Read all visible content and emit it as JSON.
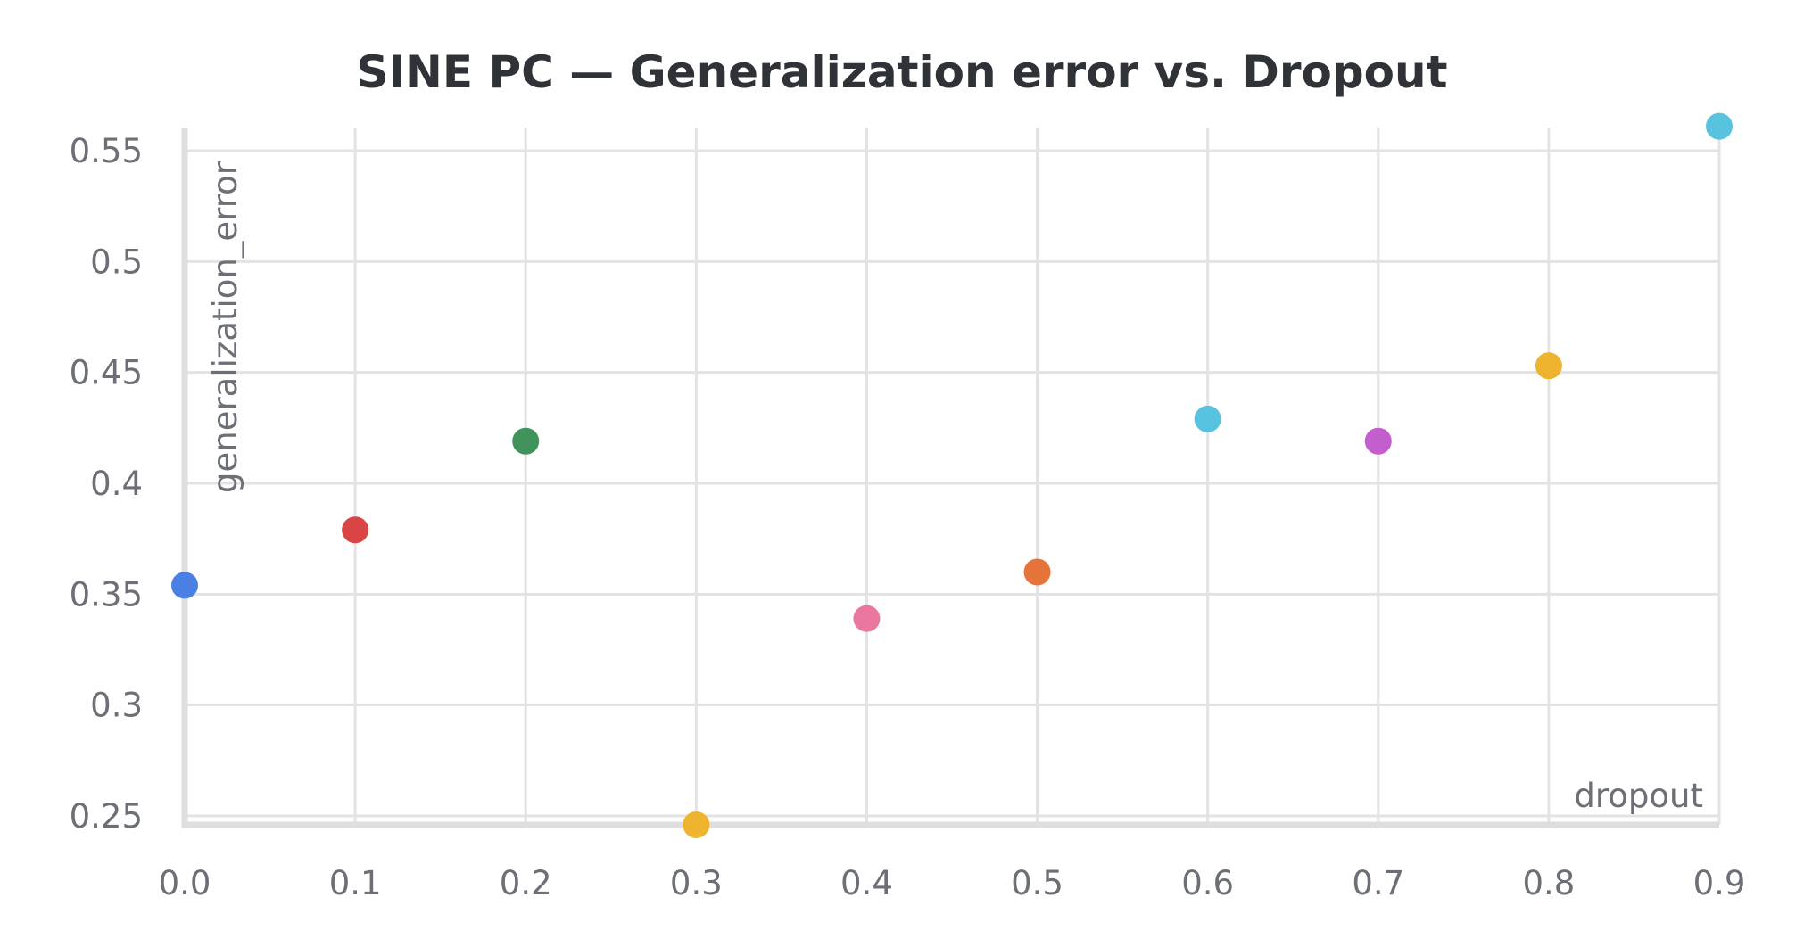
{
  "chart_data": {
    "type": "scatter",
    "title": "SINE PC — Generalization error vs. Dropout",
    "xlabel": "dropout",
    "ylabel": "generalization_error",
    "xlim": [
      0,
      0.9
    ],
    "ylim": [
      0.245,
      0.56
    ],
    "x_ticks": [
      0,
      0.1,
      0.2,
      0.3,
      0.4,
      0.5,
      0.6,
      0.7,
      0.8,
      0.9
    ],
    "x_tick_labels": [
      "0.0",
      "0.1",
      "0.2",
      "0.3",
      "0.4",
      "0.5",
      "0.6",
      "0.7",
      "0.8",
      "0.9"
    ],
    "y_ticks": [
      0.25,
      0.3,
      0.35,
      0.4,
      0.45,
      0.5,
      0.55
    ],
    "y_tick_labels": [
      "0.25",
      "0.3",
      "0.35",
      "0.4",
      "0.45",
      "0.5",
      "0.55"
    ],
    "grid": true,
    "legend": "none",
    "points": [
      {
        "x": 0.0,
        "y": 0.354,
        "color": "#4a80e3"
      },
      {
        "x": 0.1,
        "y": 0.379,
        "color": "#d94545"
      },
      {
        "x": 0.2,
        "y": 0.419,
        "color": "#41935c"
      },
      {
        "x": 0.3,
        "y": 0.246,
        "color": "#efb42f"
      },
      {
        "x": 0.4,
        "y": 0.339,
        "color": "#ea77a0"
      },
      {
        "x": 0.5,
        "y": 0.36,
        "color": "#e6733a"
      },
      {
        "x": 0.6,
        "y": 0.429,
        "color": "#58c3de"
      },
      {
        "x": 0.7,
        "y": 0.419,
        "color": "#c25fcc"
      },
      {
        "x": 0.8,
        "y": 0.453,
        "color": "#efb42f"
      },
      {
        "x": 0.9,
        "y": 0.561,
        "color": "#58c3de"
      }
    ]
  }
}
